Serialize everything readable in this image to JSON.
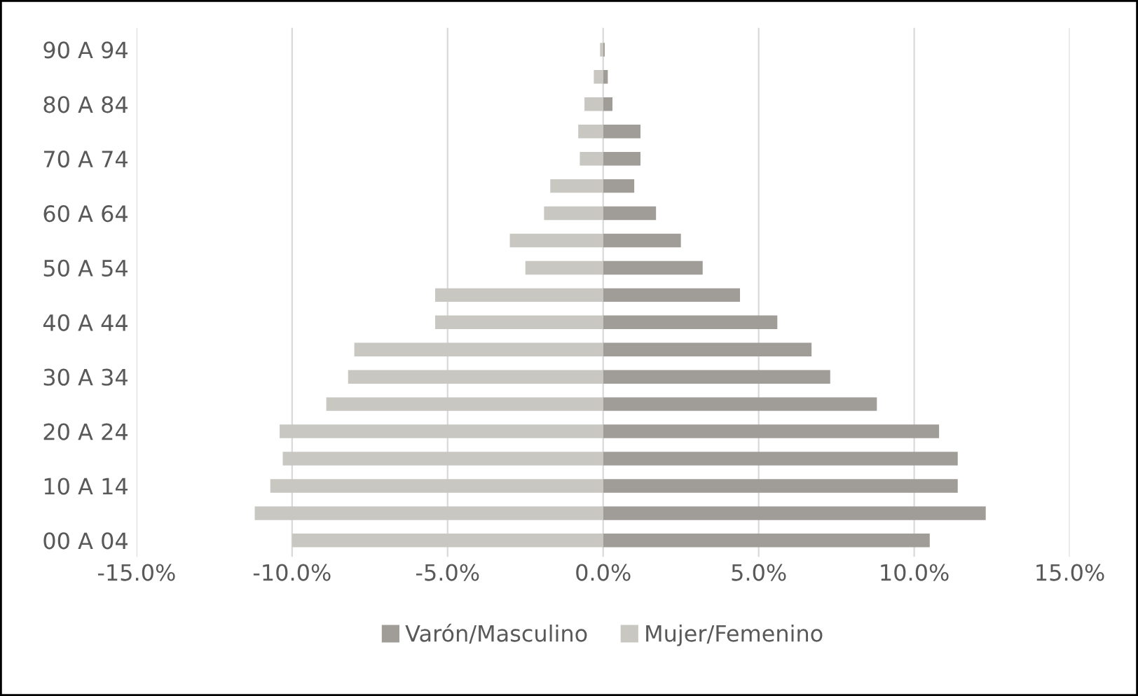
{
  "chart_data": {
    "type": "bar",
    "orientation": "horizontal",
    "stacked": true,
    "categories": [
      "90 A 94",
      null,
      "80 A 84",
      null,
      "70 A 74",
      null,
      "60 A 64",
      null,
      "50 A 54",
      null,
      "40 A 44",
      null,
      "30 A 34",
      null,
      "20 A 24",
      null,
      "10 A 14",
      null,
      "00 A 04"
    ],
    "series": [
      {
        "name": "Varón/Masculino",
        "color": "#a09d98",
        "values": [
          0.05,
          0.15,
          0.3,
          1.2,
          1.2,
          1.0,
          1.7,
          2.5,
          3.2,
          4.4,
          5.6,
          6.7,
          7.3,
          8.8,
          10.8,
          11.4,
          11.4,
          12.3,
          10.5
        ]
      },
      {
        "name": "Mujer/Femenino",
        "color": "#c8c7c2",
        "values": [
          -0.1,
          -0.3,
          -0.6,
          -0.8,
          -0.75,
          -1.7,
          -1.9,
          -3.0,
          -2.5,
          -5.4,
          -5.4,
          -8.0,
          -8.2,
          -8.9,
          -10.4,
          -10.3,
          -10.7,
          -11.2,
          -10.0
        ]
      }
    ],
    "xlim": [
      -15,
      15
    ],
    "xticks": [
      {
        "value": -15,
        "label": "-15.0%"
      },
      {
        "value": -10,
        "label": "-10.0%"
      },
      {
        "value": -5,
        "label": "-5.0%"
      },
      {
        "value": 0,
        "label": "0.0%"
      },
      {
        "value": 5,
        "label": "5.0%"
      },
      {
        "value": 10,
        "label": "10.0%"
      },
      {
        "value": 15,
        "label": "15.0%"
      }
    ],
    "grid": "x",
    "legend": "bottom"
  }
}
